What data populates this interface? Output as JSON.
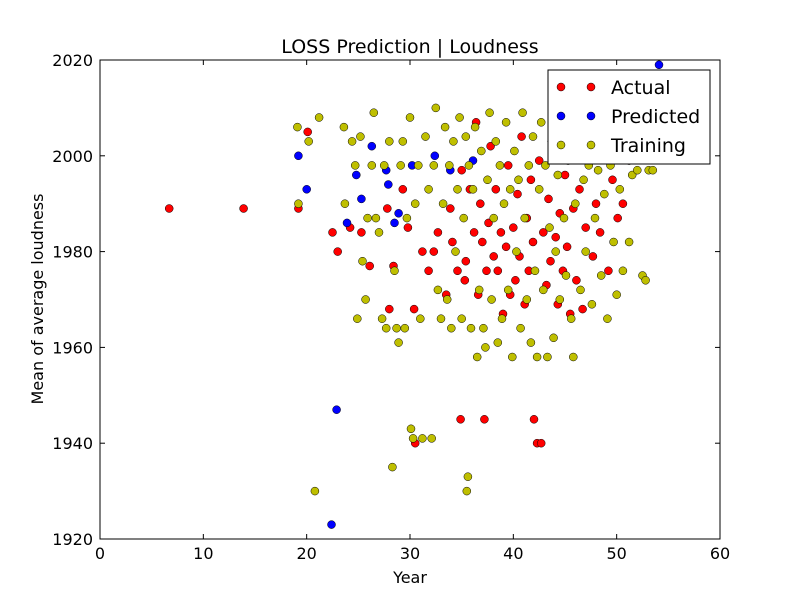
{
  "chart_data": {
    "type": "scatter",
    "title": "LOSS Prediction | Loudness",
    "xlabel": "Mean of average loudness",
    "ylabel": "Year",
    "xlim": [
      0,
      60
    ],
    "ylim": [
      1920,
      2020
    ],
    "xticks": [
      "0",
      "10",
      "20",
      "30",
      "40",
      "50",
      "60"
    ],
    "yticks": [
      "1920",
      "1940",
      "1960",
      "1980",
      "2000",
      "2020"
    ],
    "grid": false,
    "legend_position": "top-right",
    "series": [
      {
        "name": "Actual",
        "color": "#ff0000",
        "points": [
          [
            6.7,
            1989
          ],
          [
            13.9,
            1989
          ],
          [
            19.2,
            1989
          ],
          [
            20.1,
            2005
          ],
          [
            22.5,
            1984
          ],
          [
            23.0,
            1980
          ],
          [
            24.2,
            1985
          ],
          [
            25.3,
            1984
          ],
          [
            26.1,
            1977
          ],
          [
            27.8,
            1989
          ],
          [
            28.0,
            1968
          ],
          [
            28.4,
            1977
          ],
          [
            29.3,
            1993
          ],
          [
            29.8,
            1985
          ],
          [
            30.4,
            1968
          ],
          [
            30.5,
            1940
          ],
          [
            31.2,
            1980
          ],
          [
            31.8,
            1976
          ],
          [
            32.3,
            1980
          ],
          [
            32.7,
            1984
          ],
          [
            33.5,
            1971
          ],
          [
            33.9,
            1989
          ],
          [
            34.1,
            1982
          ],
          [
            34.6,
            1976
          ],
          [
            34.9,
            1945
          ],
          [
            35.0,
            1997
          ],
          [
            35.3,
            1974
          ],
          [
            35.4,
            1978
          ],
          [
            35.8,
            1993
          ],
          [
            36.2,
            1984
          ],
          [
            36.4,
            2007
          ],
          [
            36.6,
            1971
          ],
          [
            36.8,
            1990
          ],
          [
            37.0,
            1982
          ],
          [
            37.2,
            1945
          ],
          [
            37.4,
            1976
          ],
          [
            37.6,
            1986
          ],
          [
            37.8,
            2002
          ],
          [
            38.1,
            1979
          ],
          [
            38.3,
            1993
          ],
          [
            38.5,
            1976
          ],
          [
            38.8,
            1984
          ],
          [
            39.0,
            1967
          ],
          [
            39.3,
            1981
          ],
          [
            39.5,
            1998
          ],
          [
            39.7,
            1971
          ],
          [
            40.0,
            1985
          ],
          [
            40.2,
            1974
          ],
          [
            40.4,
            1992
          ],
          [
            40.6,
            1979
          ],
          [
            40.8,
            2004
          ],
          [
            41.1,
            1969
          ],
          [
            41.3,
            1987
          ],
          [
            41.5,
            1976
          ],
          [
            41.7,
            1995
          ],
          [
            41.9,
            1982
          ],
          [
            42.0,
            1945
          ],
          [
            42.3,
            1940
          ],
          [
            42.5,
            1999
          ],
          [
            42.7,
            1940
          ],
          [
            42.9,
            1984
          ],
          [
            43.2,
            1973
          ],
          [
            43.4,
            1991
          ],
          [
            43.6,
            1978
          ],
          [
            43.8,
            2002
          ],
          [
            44.1,
            1983
          ],
          [
            44.3,
            1969
          ],
          [
            44.5,
            1988
          ],
          [
            44.8,
            1976
          ],
          [
            45.0,
            1996
          ],
          [
            45.2,
            1981
          ],
          [
            45.5,
            1967
          ],
          [
            45.8,
            1989
          ],
          [
            46.1,
            1974
          ],
          [
            46.4,
            1993
          ],
          [
            46.7,
            1968
          ],
          [
            47.0,
            1985
          ],
          [
            47.3,
            1999
          ],
          [
            47.7,
            1979
          ],
          [
            48.0,
            1990
          ],
          [
            48.4,
            1984
          ],
          [
            48.8,
            2003
          ],
          [
            49.2,
            1976
          ],
          [
            49.6,
            1995
          ],
          [
            50.1,
            1987
          ],
          [
            50.6,
            1990
          ],
          [
            51.2,
            1999
          ],
          [
            51.8,
            2000
          ]
        ]
      },
      {
        "name": "Predicted",
        "color": "#0000ff",
        "points": [
          [
            19.2,
            2000
          ],
          [
            20.0,
            1993
          ],
          [
            22.4,
            1923
          ],
          [
            22.9,
            1947
          ],
          [
            23.9,
            1986
          ],
          [
            24.8,
            1996
          ],
          [
            25.3,
            1991
          ],
          [
            26.3,
            2002
          ],
          [
            27.7,
            1997
          ],
          [
            27.9,
            1994
          ],
          [
            28.5,
            1986
          ],
          [
            28.9,
            1988
          ],
          [
            30.2,
            1998
          ],
          [
            32.4,
            2000
          ],
          [
            33.9,
            1997
          ],
          [
            36.1,
            1999
          ],
          [
            54.1,
            2019
          ]
        ]
      },
      {
        "name": "Training",
        "color": "#bfbf00",
        "points": [
          [
            19.1,
            2006
          ],
          [
            19.2,
            1990
          ],
          [
            20.2,
            2003
          ],
          [
            20.8,
            1930
          ],
          [
            21.2,
            2008
          ],
          [
            23.6,
            2006
          ],
          [
            23.7,
            1990
          ],
          [
            24.4,
            2003
          ],
          [
            24.7,
            1998
          ],
          [
            24.9,
            1966
          ],
          [
            25.2,
            2004
          ],
          [
            25.4,
            1978
          ],
          [
            25.7,
            1970
          ],
          [
            25.9,
            1987
          ],
          [
            26.3,
            1998
          ],
          [
            26.5,
            2009
          ],
          [
            26.7,
            1987
          ],
          [
            27.0,
            1984
          ],
          [
            27.3,
            1966
          ],
          [
            27.5,
            1998
          ],
          [
            27.7,
            1964
          ],
          [
            28.0,
            2003
          ],
          [
            28.3,
            1935
          ],
          [
            28.5,
            1976
          ],
          [
            28.7,
            1964
          ],
          [
            28.9,
            1961
          ],
          [
            29.1,
            1998
          ],
          [
            29.3,
            2003
          ],
          [
            29.5,
            1964
          ],
          [
            29.7,
            1987
          ],
          [
            30.0,
            2008
          ],
          [
            30.1,
            1943
          ],
          [
            30.3,
            1941
          ],
          [
            30.5,
            1990
          ],
          [
            30.8,
            1998
          ],
          [
            31.0,
            1966
          ],
          [
            31.2,
            1941
          ],
          [
            31.5,
            2004
          ],
          [
            31.8,
            1993
          ],
          [
            32.1,
            1941
          ],
          [
            32.3,
            1998
          ],
          [
            32.5,
            2010
          ],
          [
            32.7,
            1972
          ],
          [
            33.0,
            1966
          ],
          [
            33.2,
            1990
          ],
          [
            33.4,
            2006
          ],
          [
            33.6,
            1970
          ],
          [
            33.8,
            1998
          ],
          [
            34.0,
            1964
          ],
          [
            34.2,
            2003
          ],
          [
            34.4,
            1980
          ],
          [
            34.6,
            1993
          ],
          [
            34.8,
            2008
          ],
          [
            35.0,
            1966
          ],
          [
            35.2,
            1987
          ],
          [
            35.4,
            2004
          ],
          [
            35.5,
            1930
          ],
          [
            35.6,
            1933
          ],
          [
            35.7,
            1998
          ],
          [
            35.9,
            1964
          ],
          [
            36.1,
            1993
          ],
          [
            36.3,
            2006
          ],
          [
            36.5,
            1958
          ],
          [
            36.7,
            1972
          ],
          [
            36.9,
            2001
          ],
          [
            37.1,
            1964
          ],
          [
            37.3,
            1960
          ],
          [
            37.5,
            1995
          ],
          [
            37.7,
            2009
          ],
          [
            37.9,
            1970
          ],
          [
            38.1,
            1987
          ],
          [
            38.3,
            2003
          ],
          [
            38.5,
            1961
          ],
          [
            38.7,
            1998
          ],
          [
            38.9,
            1966
          ],
          [
            39.1,
            1990
          ],
          [
            39.3,
            2007
          ],
          [
            39.5,
            1972
          ],
          [
            39.7,
            1993
          ],
          [
            39.9,
            1958
          ],
          [
            40.1,
            2001
          ],
          [
            40.3,
            1980
          ],
          [
            40.5,
            1995
          ],
          [
            40.7,
            1964
          ],
          [
            40.9,
            2009
          ],
          [
            41.1,
            1987
          ],
          [
            41.3,
            1970
          ],
          [
            41.5,
            1998
          ],
          [
            41.7,
            1961
          ],
          [
            41.9,
            2004
          ],
          [
            42.1,
            1976
          ],
          [
            42.3,
            1958
          ],
          [
            42.5,
            1993
          ],
          [
            42.7,
            2007
          ],
          [
            42.9,
            1972
          ],
          [
            43.1,
            1998
          ],
          [
            43.3,
            1958
          ],
          [
            43.5,
            1985
          ],
          [
            43.7,
            2003
          ],
          [
            43.9,
            1962
          ],
          [
            44.1,
            1980
          ],
          [
            44.3,
            1996
          ],
          [
            44.5,
            1970
          ],
          [
            44.7,
            2009
          ],
          [
            44.9,
            1987
          ],
          [
            45.1,
            1975
          ],
          [
            45.3,
            1999
          ],
          [
            45.6,
            1966
          ],
          [
            45.8,
            1958
          ],
          [
            46.0,
            1990
          ],
          [
            46.3,
            2004
          ],
          [
            46.5,
            1972
          ],
          [
            46.8,
            1995
          ],
          [
            47.0,
            1980
          ],
          [
            47.3,
            1998
          ],
          [
            47.6,
            1969
          ],
          [
            47.9,
            1987
          ],
          [
            48.2,
            1997
          ],
          [
            48.5,
            1975
          ],
          [
            48.8,
            1992
          ],
          [
            49.1,
            1966
          ],
          [
            49.4,
            1998
          ],
          [
            49.7,
            1982
          ],
          [
            50.0,
            1971
          ],
          [
            50.3,
            1993
          ],
          [
            50.6,
            1976
          ],
          [
            50.9,
            2000
          ],
          [
            51.2,
            1982
          ],
          [
            51.5,
            1996
          ],
          [
            52.0,
            1997
          ],
          [
            52.5,
            1975
          ],
          [
            52.8,
            1974
          ],
          [
            53.1,
            1997
          ],
          [
            53.5,
            1997
          ]
        ]
      }
    ]
  }
}
